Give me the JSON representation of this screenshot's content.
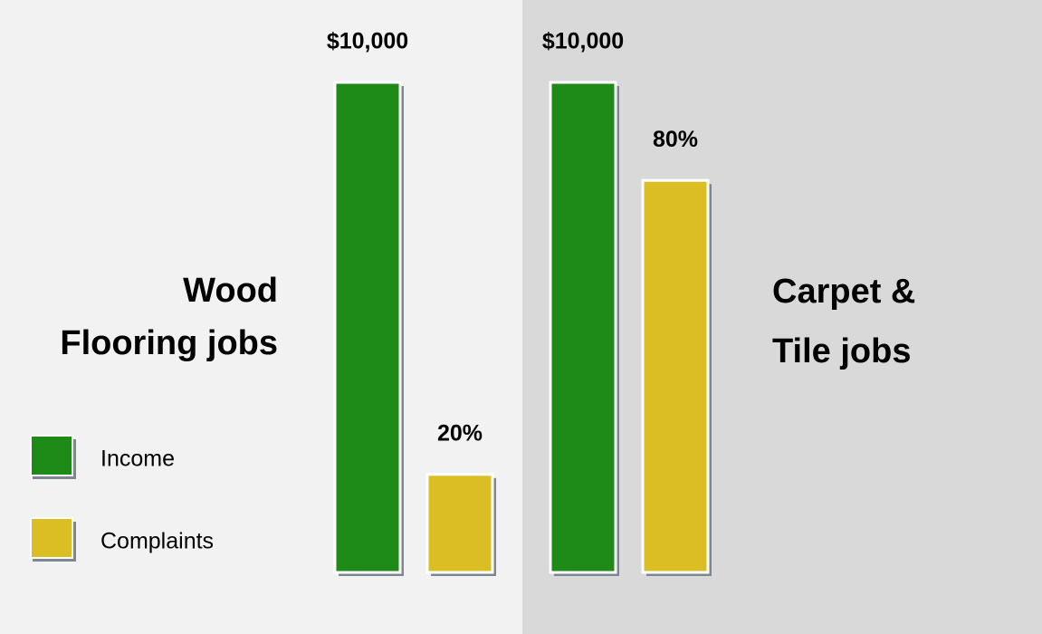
{
  "chart_data": {
    "type": "bar",
    "categories": [
      [
        "Wood",
        "Flooring jobs"
      ],
      [
        "Carpet &",
        "Tile jobs"
      ]
    ],
    "series": [
      {
        "name": "Income",
        "color": "#1e8a17",
        "values": [
          10000,
          10000
        ],
        "value_labels": [
          "$10,000",
          "$10,000"
        ]
      },
      {
        "name": "Complaints",
        "color": "#dbbe24",
        "values": [
          20,
          80
        ],
        "value_labels": [
          "20%",
          "80%"
        ],
        "axis": "y2"
      }
    ],
    "ylim": [
      0,
      10000
    ],
    "y2lim": [
      0,
      100
    ],
    "legend": "left"
  }
}
